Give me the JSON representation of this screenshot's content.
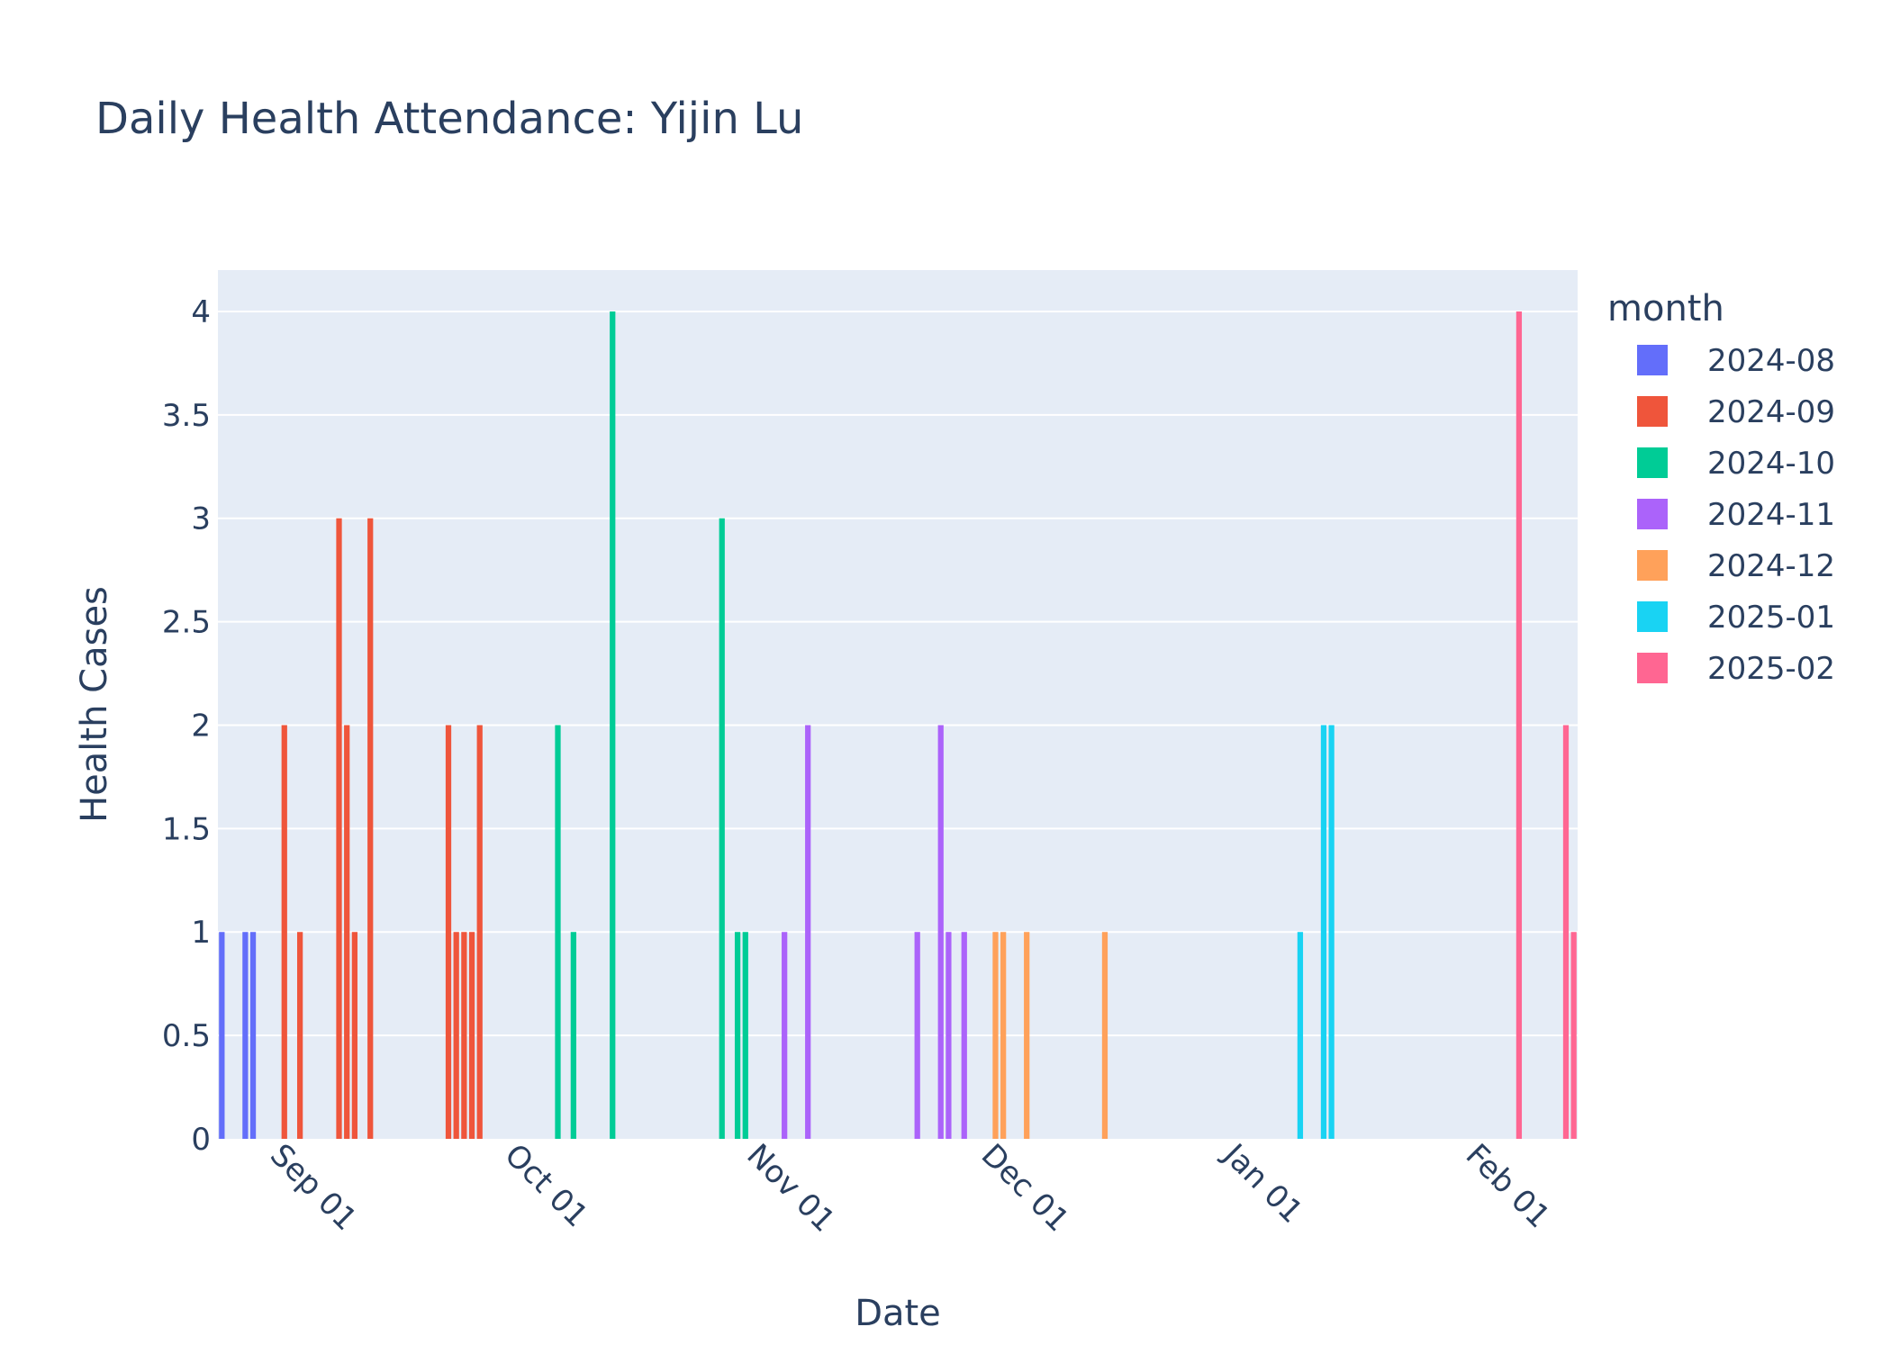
{
  "chart_data": {
    "type": "bar",
    "title": "Daily Health Attendance: Yijin Lu",
    "xlabel": "Date",
    "ylabel": "Health Cases",
    "ylim": [
      0,
      4.2
    ],
    "xlim": [
      "2024-08-26",
      "2025-02-14"
    ],
    "y_ticks": [
      "0",
      "0.5",
      "1",
      "1.5",
      "2",
      "2.5",
      "3",
      "3.5",
      "4"
    ],
    "x_ticks": [
      {
        "date": "2024-09-01",
        "label": "Sep 01"
      },
      {
        "date": "2024-10-01",
        "label": "Oct 01"
      },
      {
        "date": "2024-11-01",
        "label": "Nov 01"
      },
      {
        "date": "2024-12-01",
        "label": "Dec 01"
      },
      {
        "date": "2025-01-01",
        "label": "Jan 01"
      },
      {
        "date": "2025-02-01",
        "label": "Feb 01"
      }
    ],
    "grid": true,
    "legend_title": "month",
    "legend_position": "right",
    "plot_background": "#e5ecf6",
    "series": [
      {
        "name": "2024-08",
        "color": "#636efa",
        "points": [
          [
            "2024-08-26",
            1
          ],
          [
            "2024-08-29",
            1
          ],
          [
            "2024-08-30",
            1
          ]
        ]
      },
      {
        "name": "2024-09",
        "color": "#ef553b",
        "points": [
          [
            "2024-09-03",
            2
          ],
          [
            "2024-09-05",
            1
          ],
          [
            "2024-09-10",
            3
          ],
          [
            "2024-09-11",
            2
          ],
          [
            "2024-09-12",
            1
          ],
          [
            "2024-09-14",
            3
          ],
          [
            "2024-09-24",
            2
          ],
          [
            "2024-09-25",
            1
          ],
          [
            "2024-09-26",
            1
          ],
          [
            "2024-09-27",
            1
          ],
          [
            "2024-09-28",
            2
          ]
        ]
      },
      {
        "name": "2024-10",
        "color": "#00cc96",
        "points": [
          [
            "2024-10-08",
            2
          ],
          [
            "2024-10-10",
            1
          ],
          [
            "2024-10-15",
            4
          ],
          [
            "2024-10-29",
            3
          ],
          [
            "2024-10-31",
            1
          ],
          [
            "2024-11-01",
            1
          ]
        ]
      },
      {
        "name": "2024-11",
        "color": "#ab63fa",
        "points": [
          [
            "2024-11-06",
            1
          ],
          [
            "2024-11-09",
            2
          ],
          [
            "2024-11-23",
            1
          ],
          [
            "2024-11-26",
            2
          ],
          [
            "2024-11-27",
            1
          ],
          [
            "2024-11-29",
            1
          ]
        ]
      },
      {
        "name": "2024-12",
        "color": "#ffa15a",
        "points": [
          [
            "2024-12-03",
            1
          ],
          [
            "2024-12-04",
            1
          ],
          [
            "2024-12-07",
            1
          ],
          [
            "2024-12-17",
            1
          ]
        ]
      },
      {
        "name": "2025-01",
        "color": "#19d3f3",
        "points": [
          [
            "2025-01-11",
            1
          ],
          [
            "2025-01-14",
            2
          ],
          [
            "2025-01-15",
            2
          ]
        ]
      },
      {
        "name": "2025-02",
        "color": "#ff6692",
        "points": [
          [
            "2025-02-08",
            4
          ],
          [
            "2025-02-14",
            2
          ],
          [
            "2025-02-15",
            1
          ]
        ]
      }
    ]
  }
}
